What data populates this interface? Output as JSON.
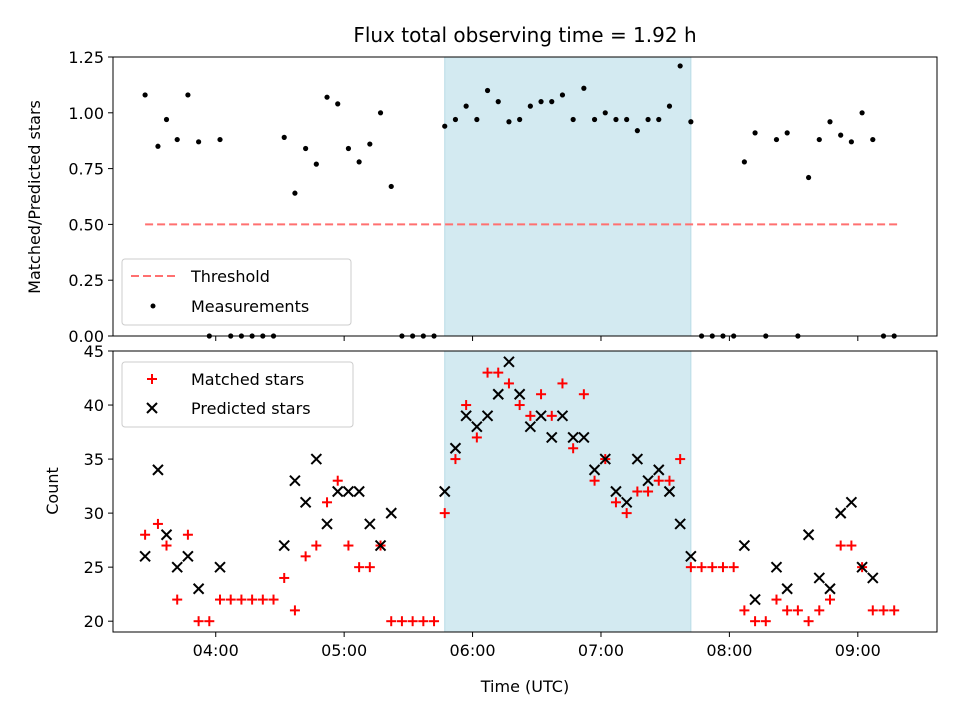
{
  "chart_data": [
    {
      "type": "scatter",
      "title": "Flux total observing time = 1.92 h",
      "xlabel": "",
      "ylabel": "Matched/Predicted stars",
      "ylim": [
        0,
        1.25
      ],
      "yticks": [
        "0.00",
        "0.25",
        "0.50",
        "0.75",
        "1.00",
        "1.25"
      ],
      "xlim_minutes": [
        192,
        577
      ],
      "xticks": [
        "04:00",
        "05:00",
        "06:00",
        "07:00",
        "08:00",
        "09:00"
      ],
      "grid": false,
      "legend_position": "lower-left",
      "highlight_span": {
        "start": "05:47",
        "end": "07:42",
        "color": "#d3eaf1"
      },
      "threshold": {
        "name": "Threshold",
        "value": 0.5,
        "x_start": "03:27",
        "x_end": "09:20",
        "color": "#ff7070",
        "style": "dashed"
      },
      "series": [
        {
          "name": "Measurements",
          "color": "#000000",
          "marker": "dot",
          "points": [
            [
              "03:27",
              1.08
            ],
            [
              "03:33",
              0.85
            ],
            [
              "03:37",
              0.97
            ],
            [
              "03:42",
              0.88
            ],
            [
              "03:47",
              1.08
            ],
            [
              "03:52",
              0.87
            ],
            [
              "03:57",
              0.0
            ],
            [
              "04:02",
              0.88
            ],
            [
              "04:07",
              0.0
            ],
            [
              "04:12",
              0.0
            ],
            [
              "04:17",
              0.0
            ],
            [
              "04:22",
              0.0
            ],
            [
              "04:27",
              0.0
            ],
            [
              "04:32",
              0.89
            ],
            [
              "04:37",
              0.64
            ],
            [
              "04:42",
              0.84
            ],
            [
              "04:47",
              0.77
            ],
            [
              "04:52",
              1.07
            ],
            [
              "04:57",
              1.04
            ],
            [
              "05:02",
              0.84
            ],
            [
              "05:07",
              0.78
            ],
            [
              "05:12",
              0.86
            ],
            [
              "05:17",
              1.0
            ],
            [
              "05:22",
              0.67
            ],
            [
              "05:27",
              0.0
            ],
            [
              "05:32",
              0.0
            ],
            [
              "05:37",
              0.0
            ],
            [
              "05:42",
              0.0
            ],
            [
              "05:47",
              0.94
            ],
            [
              "05:52",
              0.97
            ],
            [
              "05:57",
              1.03
            ],
            [
              "06:02",
              0.97
            ],
            [
              "06:07",
              1.1
            ],
            [
              "06:12",
              1.05
            ],
            [
              "06:17",
              0.96
            ],
            [
              "06:22",
              0.97
            ],
            [
              "06:27",
              1.03
            ],
            [
              "06:32",
              1.05
            ],
            [
              "06:37",
              1.05
            ],
            [
              "06:42",
              1.08
            ],
            [
              "06:47",
              0.97
            ],
            [
              "06:52",
              1.11
            ],
            [
              "06:57",
              0.97
            ],
            [
              "07:02",
              1.0
            ],
            [
              "07:07",
              0.97
            ],
            [
              "07:12",
              0.97
            ],
            [
              "07:17",
              0.92
            ],
            [
              "07:22",
              0.97
            ],
            [
              "07:27",
              0.97
            ],
            [
              "07:32",
              1.03
            ],
            [
              "07:37",
              1.21
            ],
            [
              "07:42",
              0.96
            ],
            [
              "07:47",
              0.0
            ],
            [
              "07:52",
              0.0
            ],
            [
              "07:57",
              0.0
            ],
            [
              "08:02",
              0.0
            ],
            [
              "08:07",
              0.78
            ],
            [
              "08:12",
              0.91
            ],
            [
              "08:17",
              0.0
            ],
            [
              "08:22",
              0.88
            ],
            [
              "08:27",
              0.91
            ],
            [
              "08:32",
              0.0
            ],
            [
              "08:37",
              0.71
            ],
            [
              "08:42",
              0.88
            ],
            [
              "08:47",
              0.96
            ],
            [
              "08:52",
              0.9
            ],
            [
              "08:57",
              0.87
            ],
            [
              "09:02",
              1.0
            ],
            [
              "09:07",
              0.88
            ],
            [
              "09:12",
              0.0
            ],
            [
              "09:17",
              0.0
            ]
          ]
        }
      ]
    },
    {
      "type": "scatter",
      "title": "",
      "xlabel": "Time (UTC)",
      "ylabel": "Count",
      "ylim": [
        19,
        45
      ],
      "yticks": [
        "20",
        "25",
        "30",
        "35",
        "40",
        "45"
      ],
      "xlim_minutes": [
        192,
        577
      ],
      "xticks": [
        "04:00",
        "05:00",
        "06:00",
        "07:00",
        "08:00",
        "09:00"
      ],
      "grid": false,
      "legend_position": "upper-left",
      "highlight_span": {
        "start": "05:47",
        "end": "07:42",
        "color": "#d3eaf1"
      },
      "series": [
        {
          "name": "Matched stars",
          "color": "#ff0000",
          "marker": "plus",
          "points": [
            [
              "03:27",
              28
            ],
            [
              "03:33",
              29
            ],
            [
              "03:37",
              27
            ],
            [
              "03:42",
              22
            ],
            [
              "03:47",
              28
            ],
            [
              "03:52",
              20
            ],
            [
              "03:57",
              20
            ],
            [
              "04:02",
              22
            ],
            [
              "04:07",
              22
            ],
            [
              "04:12",
              22
            ],
            [
              "04:17",
              22
            ],
            [
              "04:22",
              22
            ],
            [
              "04:27",
              22
            ],
            [
              "04:32",
              24
            ],
            [
              "04:37",
              21
            ],
            [
              "04:42",
              26
            ],
            [
              "04:47",
              27
            ],
            [
              "04:52",
              31
            ],
            [
              "04:57",
              33
            ],
            [
              "05:02",
              27
            ],
            [
              "05:07",
              25
            ],
            [
              "05:12",
              25
            ],
            [
              "05:17",
              27
            ],
            [
              "05:22",
              20
            ],
            [
              "05:27",
              20
            ],
            [
              "05:32",
              20
            ],
            [
              "05:37",
              20
            ],
            [
              "05:42",
              20
            ],
            [
              "05:47",
              30
            ],
            [
              "05:52",
              35
            ],
            [
              "05:57",
              40
            ],
            [
              "06:02",
              37
            ],
            [
              "06:07",
              43
            ],
            [
              "06:12",
              43
            ],
            [
              "06:17",
              42
            ],
            [
              "06:22",
              40
            ],
            [
              "06:27",
              39
            ],
            [
              "06:32",
              41
            ],
            [
              "06:37",
              39
            ],
            [
              "06:42",
              42
            ],
            [
              "06:47",
              36
            ],
            [
              "06:52",
              41
            ],
            [
              "06:57",
              33
            ],
            [
              "07:02",
              35
            ],
            [
              "07:07",
              31
            ],
            [
              "07:12",
              30
            ],
            [
              "07:17",
              32
            ],
            [
              "07:22",
              32
            ],
            [
              "07:27",
              33
            ],
            [
              "07:32",
              33
            ],
            [
              "07:37",
              35
            ],
            [
              "07:42",
              25
            ],
            [
              "07:47",
              25
            ],
            [
              "07:52",
              25
            ],
            [
              "07:57",
              25
            ],
            [
              "08:02",
              25
            ],
            [
              "08:07",
              21
            ],
            [
              "08:12",
              20
            ],
            [
              "08:17",
              20
            ],
            [
              "08:22",
              22
            ],
            [
              "08:27",
              21
            ],
            [
              "08:32",
              21
            ],
            [
              "08:37",
              20
            ],
            [
              "08:42",
              21
            ],
            [
              "08:47",
              22
            ],
            [
              "08:52",
              27
            ],
            [
              "08:57",
              27
            ],
            [
              "09:02",
              25
            ],
            [
              "09:07",
              21
            ],
            [
              "09:12",
              21
            ],
            [
              "09:17",
              21
            ]
          ]
        },
        {
          "name": "Predicted stars",
          "color": "#000000",
          "marker": "x",
          "points": [
            [
              "03:27",
              26
            ],
            [
              "03:33",
              34
            ],
            [
              "03:37",
              28
            ],
            [
              "03:42",
              25
            ],
            [
              "03:47",
              26
            ],
            [
              "03:52",
              23
            ],
            [
              "04:02",
              25
            ],
            [
              "04:32",
              27
            ],
            [
              "04:37",
              33
            ],
            [
              "04:42",
              31
            ],
            [
              "04:47",
              35
            ],
            [
              "04:52",
              29
            ],
            [
              "04:57",
              32
            ],
            [
              "05:02",
              32
            ],
            [
              "05:07",
              32
            ],
            [
              "05:12",
              29
            ],
            [
              "05:17",
              27
            ],
            [
              "05:22",
              30
            ],
            [
              "05:47",
              32
            ],
            [
              "05:52",
              36
            ],
            [
              "05:57",
              39
            ],
            [
              "06:02",
              38
            ],
            [
              "06:07",
              39
            ],
            [
              "06:12",
              41
            ],
            [
              "06:17",
              44
            ],
            [
              "06:22",
              41
            ],
            [
              "06:27",
              38
            ],
            [
              "06:32",
              39
            ],
            [
              "06:37",
              37
            ],
            [
              "06:42",
              39
            ],
            [
              "06:47",
              37
            ],
            [
              "06:52",
              37
            ],
            [
              "06:57",
              34
            ],
            [
              "07:02",
              35
            ],
            [
              "07:07",
              32
            ],
            [
              "07:12",
              31
            ],
            [
              "07:17",
              35
            ],
            [
              "07:22",
              33
            ],
            [
              "07:27",
              34
            ],
            [
              "07:32",
              32
            ],
            [
              "07:37",
              29
            ],
            [
              "07:42",
              26
            ],
            [
              "08:07",
              27
            ],
            [
              "08:12",
              22
            ],
            [
              "08:22",
              25
            ],
            [
              "08:27",
              23
            ],
            [
              "08:37",
              28
            ],
            [
              "08:42",
              24
            ],
            [
              "08:47",
              23
            ],
            [
              "08:52",
              30
            ],
            [
              "08:57",
              31
            ],
            [
              "09:02",
              25
            ],
            [
              "09:07",
              24
            ]
          ]
        }
      ]
    }
  ]
}
